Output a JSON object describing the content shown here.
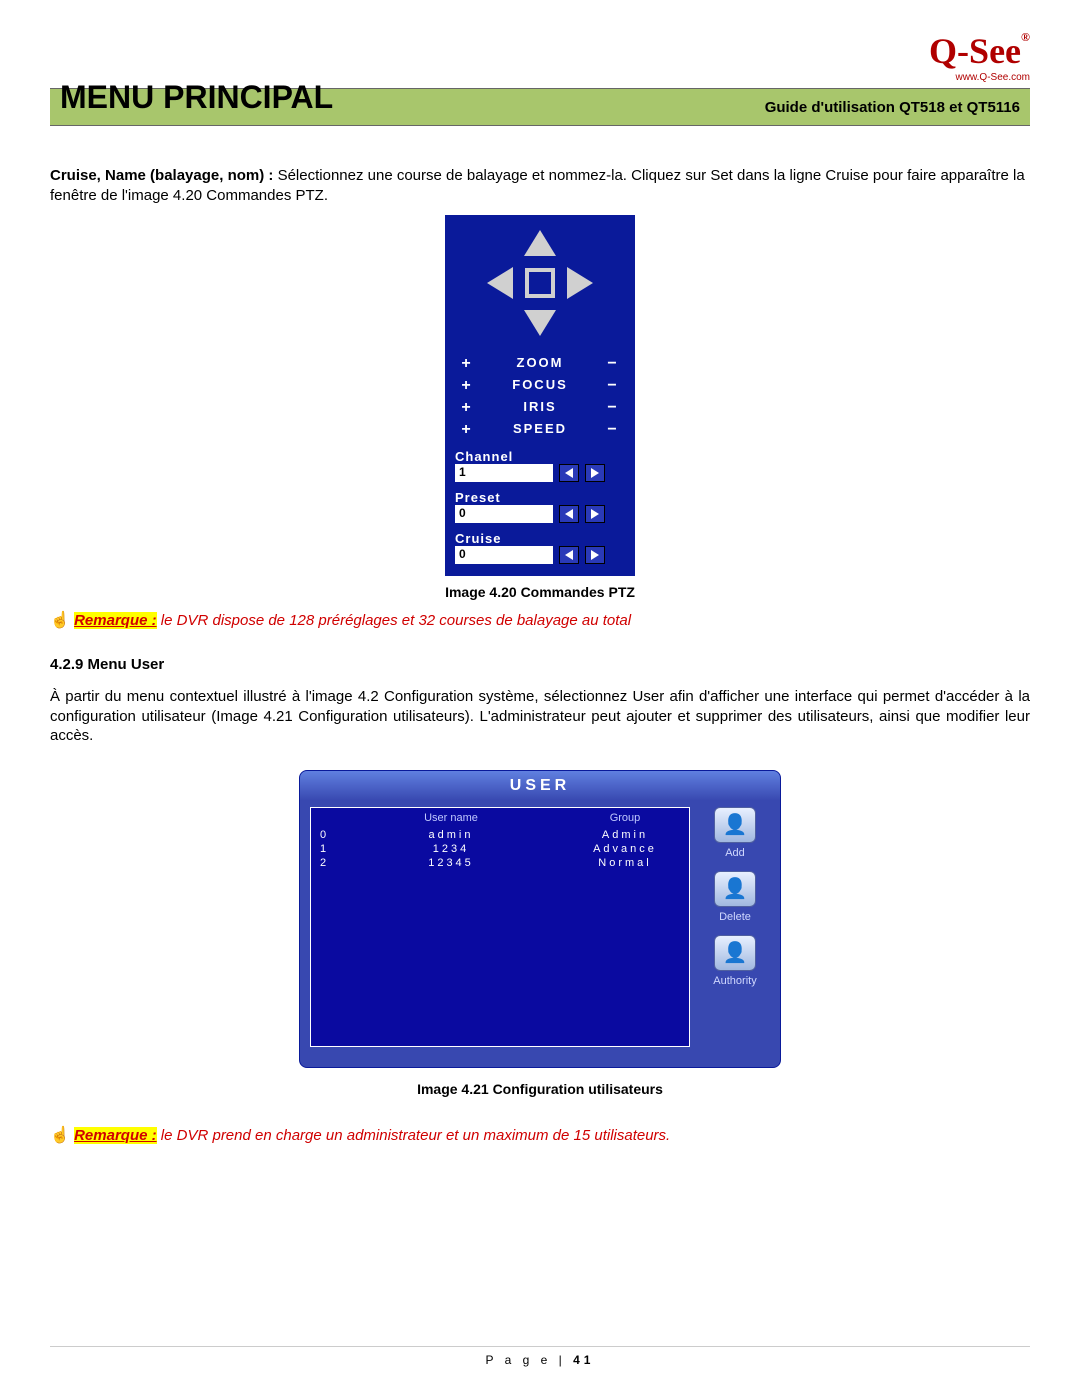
{
  "header": {
    "logo_text": "Q-See",
    "logo_url": "www.Q-See.com",
    "page_title": "MENU PRINCIPAL",
    "guide_title": "Guide d'utilisation QT518 et QT5116"
  },
  "intro": {
    "bold": "Cruise, Name (balayage, nom) :",
    "rest": " Sélectionnez une course de balayage et nommez-la. Cliquez sur Set dans la ligne Cruise pour faire apparaître la fenêtre de l'image 4.20 Commandes PTZ."
  },
  "ptz": {
    "controls": [
      {
        "label": "ZOOM"
      },
      {
        "label": "FOCUS"
      },
      {
        "label": "IRIS"
      },
      {
        "label": "SPEED"
      }
    ],
    "fields": {
      "channel_label": "Channel",
      "channel_value": "1",
      "preset_label": "Preset",
      "preset_value": "0",
      "cruise_label": "Cruise",
      "cruise_value": "0"
    },
    "caption": "Image 4.20 Commandes PTZ"
  },
  "remark1": {
    "label": "Remarque :",
    "text": " le DVR dispose de 128 préréglages et 32 courses de balayage au total"
  },
  "section": {
    "heading": "4.2.9 Menu User",
    "para": "À partir du menu contextuel illustré à l'image 4.2 Configuration système, sélectionnez User afin d'afficher une interface qui permet d'accéder à la configuration utilisateur (Image 4.21 Configuration utilisateurs). L'administrateur peut ajouter et supprimer des utilisateurs, ainsi que modifier leur accès."
  },
  "user": {
    "title": "USER",
    "col_name": "User name",
    "col_group": "Group",
    "rows": [
      {
        "idx": "0",
        "name": "admin",
        "group": "Admin"
      },
      {
        "idx": "1",
        "name": "1234",
        "group": "Advance"
      },
      {
        "idx": "2",
        "name": "12345",
        "group": "Normal"
      }
    ],
    "buttons": {
      "add": "Add",
      "delete": "Delete",
      "authority": "Authority"
    },
    "caption": "Image 4.21 Configuration utilisateurs"
  },
  "remark2": {
    "label": "Remarque :",
    "text": " le DVR prend en charge un administrateur et un maximum de 15 utilisateurs."
  },
  "footer": {
    "prefix": "P a g e  | ",
    "num": "41"
  },
  "colors": {
    "header_bg": "#a8c66c",
    "panel_blue": "#0a1a9a",
    "remark_red": "#d00000"
  }
}
